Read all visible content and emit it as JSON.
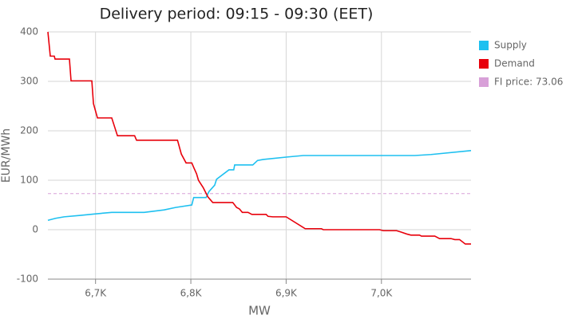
{
  "chart_data": {
    "type": "line",
    "title": "Delivery period: 09:15 - 09:30 (EET)",
    "xlabel": "MW",
    "ylabel": "EUR/MWh",
    "xlim": [
      6650,
      7094
    ],
    "ylim": [
      -100,
      400
    ],
    "xticks": [
      {
        "value": 6700,
        "label": "6,7K"
      },
      {
        "value": 6800,
        "label": "6,8K"
      },
      {
        "value": 6900,
        "label": "6,9K"
      },
      {
        "value": 7000,
        "label": "7,0K"
      }
    ],
    "yticks": [
      -100,
      0,
      100,
      200,
      300,
      400
    ],
    "grid": true,
    "legend": "right",
    "series": [
      {
        "name": "Supply",
        "color": "#1ec0f0",
        "x": [
          6650,
          6658,
          6667,
          6684,
          6700,
          6717,
          6751,
          6772,
          6784,
          6801,
          6803,
          6816,
          6819,
          6825,
          6827,
          6840,
          6845,
          6846,
          6865,
          6870,
          6876,
          6901,
          6918,
          7035,
          7052,
          7094
        ],
        "values": [
          19,
          23,
          26,
          29,
          32,
          35,
          35,
          40,
          45,
          50,
          65,
          65,
          77,
          90,
          102,
          121,
          121,
          131,
          131,
          140,
          142,
          147,
          150,
          150,
          152,
          160
        ]
      },
      {
        "name": "Demand",
        "color": "#e8000b",
        "x": [
          6650,
          6652.5,
          6656.7,
          6657.5,
          6672.6,
          6674.3,
          6696.1,
          6697.8,
          6702,
          6717,
          6723,
          6741,
          6743,
          6786,
          6790,
          6795,
          6801,
          6803,
          6806,
          6808,
          6813,
          6818,
          6823,
          6844,
          6848,
          6851,
          6854,
          6860,
          6864,
          6879,
          6881,
          6886,
          6900,
          6920,
          6937,
          6939,
          6960,
          6998,
          7002,
          7016,
          7021,
          7027,
          7031,
          7040,
          7042,
          7056,
          7061,
          7073,
          7077,
          7082,
          7088,
          7094
        ],
        "values": [
          400,
          351,
          351,
          345,
          345,
          301,
          301,
          255,
          226,
          226,
          190,
          190,
          181,
          181,
          153,
          135,
          135,
          126,
          113,
          100,
          85,
          66,
          55,
          55,
          45,
          42,
          35,
          35,
          31,
          31,
          27,
          26,
          26,
          2,
          2,
          0,
          0,
          0,
          -2,
          -2,
          -5,
          -9,
          -11,
          -11,
          -13,
          -13,
          -18,
          -18,
          -20,
          -20,
          -29,
          -29
        ]
      }
    ],
    "fi_price": {
      "name": "FI price: 73.06",
      "value": 73.06,
      "color": "#d8a0d8"
    }
  }
}
